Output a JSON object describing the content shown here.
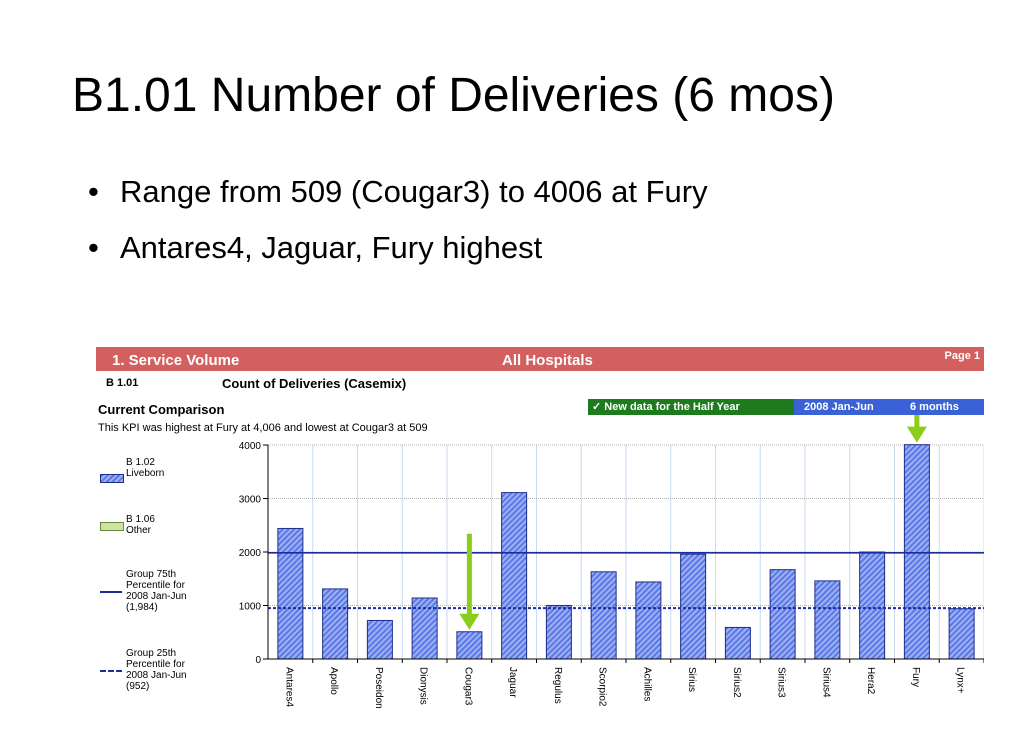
{
  "slide": {
    "title": "B1.01 Number of Deliveries (6 mos)",
    "bullets": [
      "Range from 509 (Cougar3) to 4006 at Fury",
      "Antares4, Jaguar, Fury highest"
    ]
  },
  "report": {
    "section": "1. Service Volume",
    "scope": "All Hospitals",
    "page": "Page 1",
    "kpi_code": "B 1.01",
    "kpi_title": "Count of Deliveries (Casemix)",
    "comparison_heading": "Current Comparison",
    "note": "This KPI was highest at Fury at 4,006 and lowest at Cougar3 at 509",
    "new_data_label": "✓ New data for the Half Year",
    "period": "2008 Jan-Jun",
    "period_length": "6 months"
  },
  "legend": [
    {
      "symbol": "blue-hatched-swatch",
      "label": "B 1.02\nLiveborn"
    },
    {
      "symbol": "green-swatch",
      "label": "B 1.06\nOther"
    },
    {
      "symbol": "solid-line",
      "label": "Group 75th\nPercentile for\n2008 Jan-Jun\n(1,984)"
    },
    {
      "symbol": "dashed-line",
      "label": "Group 25th\nPercentile for\n2008 Jan-Jun\n(952)"
    }
  ],
  "colors": {
    "bar_fill": "#5b78e6",
    "bar_stroke": "#1c2c8c",
    "reference_line": "#1c2c9a",
    "arrow": "#8ccc1a",
    "header_band": "#d45f5f",
    "new_data": "#1d7a1d",
    "period_band": "#3a62d6"
  },
  "chart_data": {
    "type": "bar",
    "categories": [
      "Antares4",
      "Apollo",
      "Poseidon",
      "Dionysis",
      "Cougar3",
      "Jaguar",
      "Regulus",
      "Scorpio2",
      "Achilles",
      "Sirius",
      "Sirius2",
      "Sirius3",
      "Sirius4",
      "Hera2",
      "Fury",
      "Lynx+"
    ],
    "series": [
      {
        "name": "B 1.02 Liveborn",
        "values": [
          2440,
          1310,
          720,
          1140,
          509,
          3110,
          1000,
          1630,
          1440,
          1960,
          590,
          1670,
          1460,
          2000,
          4006,
          940
        ]
      }
    ],
    "reference_lines": [
      {
        "name": "Group 75th Percentile for 2008 Jan-Jun (1,984)",
        "value": 1984,
        "style": "solid"
      },
      {
        "name": "Group 25th Percentile for 2008 Jan-Jun (952)",
        "value": 952,
        "style": "dashed"
      }
    ],
    "highlighted": [
      "Cougar3",
      "Fury"
    ],
    "yticks": [
      "0",
      "1000",
      "2000",
      "3000",
      "4000"
    ],
    "ylim": [
      0,
      4000
    ],
    "grid": true,
    "legend_position": "left"
  }
}
